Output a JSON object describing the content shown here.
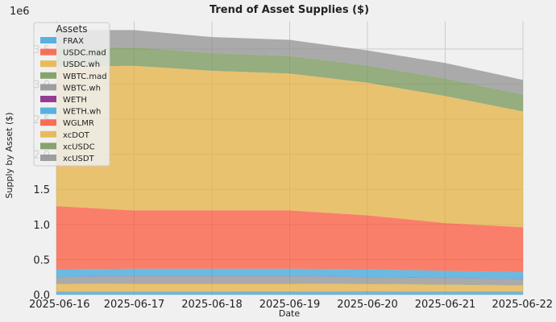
{
  "chart_data": {
    "type": "area",
    "stacked": true,
    "title": "Trend of Asset Supplies ($)",
    "xlabel": "Date",
    "ylabel": "Supply by Asset ($)",
    "y_offset_label": "1e6",
    "x": [
      "2025-06-16",
      "2025-06-17",
      "2025-06-18",
      "2025-06-19",
      "2025-06-20",
      "2025-06-21",
      "2025-06-22"
    ],
    "ylim": [
      0,
      3900000
    ],
    "yticks": [
      0,
      500000,
      1000000,
      1500000,
      2000000,
      2500000,
      3000000,
      3500000
    ],
    "ytick_labels": [
      "0.0",
      "0.5",
      "1.0",
      "1.5",
      "2.0",
      "2.5",
      "3.0",
      "3.5"
    ],
    "grid": true,
    "legend": {
      "title": "Assets",
      "position": "top-left"
    },
    "series": [
      {
        "name": "FRAX",
        "color": "#30a2da",
        "values": [
          40000,
          40000,
          40000,
          42000,
          45000,
          42000,
          40000
        ]
      },
      {
        "name": "USDC.mad",
        "color": "#fc4f30",
        "values": [
          5000,
          5000,
          5000,
          5000,
          5000,
          5000,
          5000
        ]
      },
      {
        "name": "USDC.wh",
        "color": "#e5ae38",
        "values": [
          105000,
          110000,
          110000,
          108000,
          100000,
          95000,
          85000
        ]
      },
      {
        "name": "WBTC.mad",
        "color": "#6d904f",
        "values": [
          5000,
          5000,
          5000,
          5000,
          5000,
          5000,
          5000
        ]
      },
      {
        "name": "WBTC.wh",
        "color": "#8b8b8b",
        "values": [
          95000,
          100000,
          100000,
          100000,
          95000,
          90000,
          85000
        ]
      },
      {
        "name": "WETH",
        "color": "#810f7c",
        "values": [
          3000,
          3000,
          3000,
          3000,
          3000,
          3000,
          3000
        ]
      },
      {
        "name": "WETH.wh",
        "color": "#30a2da",
        "values": [
          107000,
          107000,
          107000,
          107000,
          107000,
          100000,
          97000
        ]
      },
      {
        "name": "WGLMR",
        "color": "#fc4f30",
        "values": [
          900000,
          830000,
          830000,
          830000,
          770000,
          680000,
          640000
        ]
      },
      {
        "name": "xcDOT",
        "color": "#e5ae38",
        "values": [
          1990000,
          2060000,
          1990000,
          1950000,
          1890000,
          1810000,
          1650000
        ]
      },
      {
        "name": "xcUSDC",
        "color": "#6d904f",
        "values": [
          265000,
          265000,
          250000,
          250000,
          245000,
          250000,
          240000
        ]
      },
      {
        "name": "xcUSDT",
        "color": "#8b8b8b",
        "values": [
          255000,
          245000,
          230000,
          230000,
          215000,
          220000,
          210000
        ]
      }
    ]
  }
}
